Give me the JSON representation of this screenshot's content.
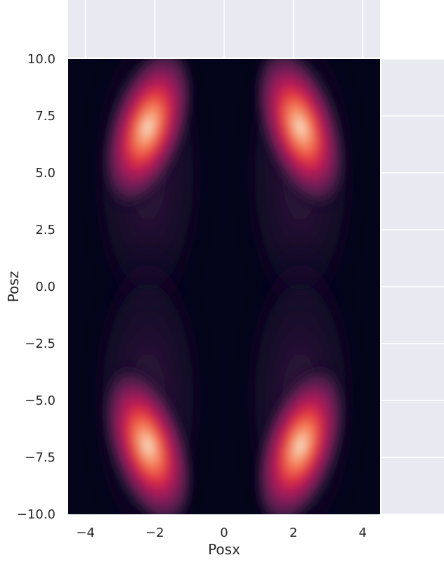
{
  "chart_data": {
    "type": "heatmap",
    "subtype": "joint-kde",
    "title": "",
    "xlabel": "Posx",
    "ylabel": "Posz",
    "xlim": [
      -4.5,
      4.5
    ],
    "ylim": [
      -10,
      10
    ],
    "x_ticks": [
      -4,
      -2,
      0,
      2,
      4
    ],
    "x_tick_labels": [
      "−4",
      "−2",
      "0",
      "2",
      "4"
    ],
    "y_ticks": [
      10,
      7.5,
      5,
      2.5,
      0,
      -2.5,
      -5,
      -7.5,
      -10
    ],
    "y_tick_labels": [
      "10.0",
      "7.5",
      "5.0",
      "2.5",
      "0.0",
      "−2.5",
      "−5.0",
      "−7.5",
      "−10.0"
    ],
    "colormap": "rocket",
    "background": "#04041a",
    "marginal_panel_color": "#e9e9f1",
    "density_peaks": [
      {
        "x": -2.2,
        "z": 7.0,
        "relative_density": 1.0
      },
      {
        "x": 2.2,
        "z": 7.0,
        "relative_density": 1.0
      },
      {
        "x": -2.2,
        "z": -7.0,
        "relative_density": 1.0
      },
      {
        "x": 2.2,
        "z": -7.0,
        "relative_density": 1.0
      }
    ],
    "grid": true,
    "legend": "none"
  }
}
